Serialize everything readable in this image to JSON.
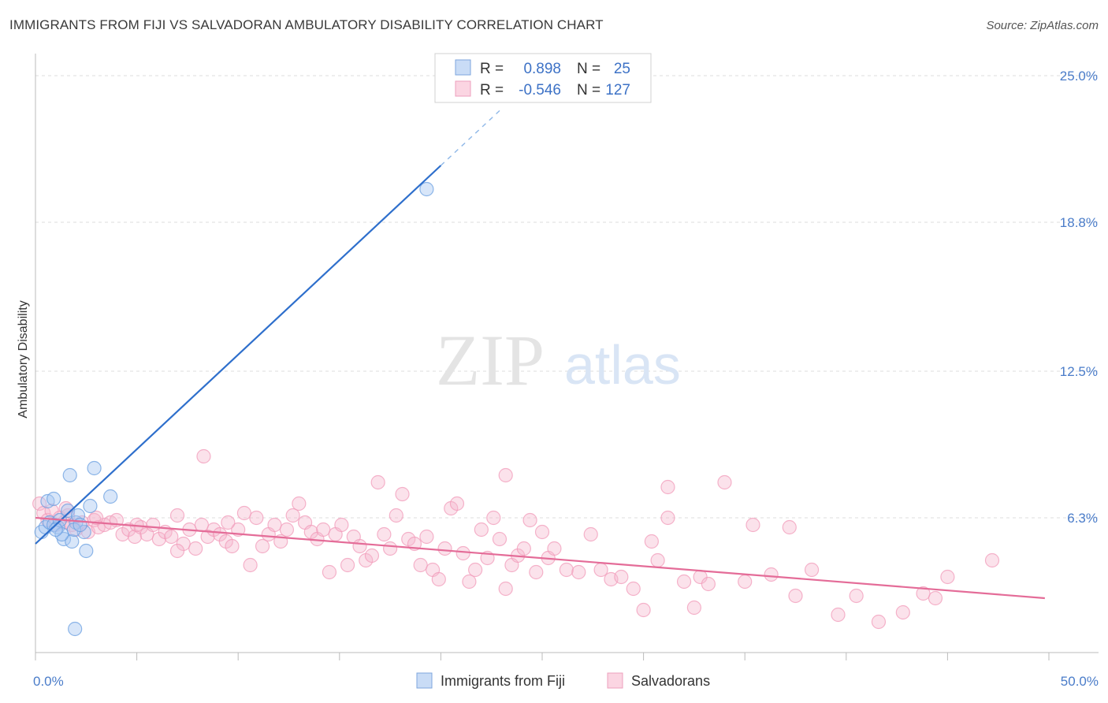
{
  "header": {
    "title": "IMMIGRANTS FROM FIJI VS SALVADORAN AMBULATORY DISABILITY CORRELATION CHART",
    "source": "Source: ZipAtlas.com"
  },
  "watermark": {
    "zip": "ZIP",
    "atlas": "atlas"
  },
  "legend_box": {
    "rows": [
      {
        "r_label": "R =",
        "r_value": "0.898",
        "n_label": "N =",
        "n_value": "25",
        "color": "#a9c8f1"
      },
      {
        "r_label": "R =",
        "r_value": "-0.546",
        "n_label": "N =",
        "n_value": "127",
        "color": "#f6b6cc"
      }
    ]
  },
  "bottom_legend": [
    {
      "label": "Immigrants from Fiji",
      "color": "#a9c8f1"
    },
    {
      "label": "Salvadorans",
      "color": "#f6b6cc"
    }
  ],
  "chart_data": {
    "type": "scatter",
    "title": "IMMIGRANTS FROM FIJI VS SALVADORAN AMBULATORY DISABILITY CORRELATION CHART",
    "xlabel": "",
    "ylabel": "Ambulatory Disability",
    "xlim": [
      0,
      50
    ],
    "ylim": [
      0,
      25
    ],
    "x_tick_labels": [
      "0.0%",
      "50.0%"
    ],
    "y_tick_values": [
      6.3,
      12.5,
      18.8,
      25.0
    ],
    "y_tick_labels": [
      "6.3%",
      "12.5%",
      "18.8%",
      "25.0%"
    ],
    "grid": true,
    "legend_position": "top-center",
    "series": [
      {
        "name": "Immigrants from Fiji",
        "color": "#6a9fe0",
        "line_color": "#2e6fcc",
        "trend": {
          "x0": 0,
          "y0": 5.2,
          "x1": 20,
          "y1": 21.2,
          "dashed_to_x": 23
        },
        "points": [
          [
            0.3,
            5.7
          ],
          [
            0.5,
            5.9
          ],
          [
            0.7,
            6.1
          ],
          [
            0.9,
            6.0
          ],
          [
            1.1,
            5.9
          ],
          [
            0.6,
            7.0
          ],
          [
            0.9,
            7.1
          ],
          [
            1.2,
            6.2
          ],
          [
            1.4,
            5.4
          ],
          [
            1.6,
            6.6
          ],
          [
            1.8,
            5.3
          ],
          [
            2.0,
            6.1
          ],
          [
            2.1,
            6.4
          ],
          [
            2.4,
            5.7
          ],
          [
            2.7,
            6.8
          ],
          [
            1.3,
            5.6
          ],
          [
            2.9,
            8.4
          ],
          [
            1.7,
            8.1
          ],
          [
            3.7,
            7.2
          ],
          [
            2.5,
            4.9
          ],
          [
            19.3,
            20.2
          ],
          [
            1.9,
            5.8
          ],
          [
            2.2,
            6.0
          ],
          [
            1.0,
            5.8
          ],
          [
            1.95,
            1.6
          ]
        ]
      },
      {
        "name": "Salvadorans",
        "color": "#f19bb9",
        "line_color": "#e46c98",
        "trend": {
          "x0": 0,
          "y0": 6.3,
          "x1": 49.8,
          "y1": 2.9
        },
        "points": [
          [
            0.2,
            6.9
          ],
          [
            0.4,
            6.5
          ],
          [
            0.6,
            6.2
          ],
          [
            0.8,
            6.6
          ],
          [
            1.0,
            6.0
          ],
          [
            1.2,
            6.3
          ],
          [
            1.4,
            6.1
          ],
          [
            1.6,
            6.4
          ],
          [
            1.8,
            6.0
          ],
          [
            2.0,
            5.8
          ],
          [
            2.3,
            6.1
          ],
          [
            2.6,
            5.7
          ],
          [
            2.9,
            6.2
          ],
          [
            3.1,
            5.9
          ],
          [
            3.4,
            6.0
          ],
          [
            3.7,
            6.1
          ],
          [
            4.0,
            6.2
          ],
          [
            4.3,
            5.6
          ],
          [
            4.6,
            5.8
          ],
          [
            4.9,
            5.5
          ],
          [
            5.2,
            5.9
          ],
          [
            5.5,
            5.6
          ],
          [
            5.8,
            6.0
          ],
          [
            6.1,
            5.4
          ],
          [
            6.4,
            5.7
          ],
          [
            6.7,
            5.5
          ],
          [
            7.0,
            6.4
          ],
          [
            7.3,
            5.2
          ],
          [
            7.6,
            5.8
          ],
          [
            7.9,
            5.0
          ],
          [
            8.2,
            6.0
          ],
          [
            8.5,
            5.5
          ],
          [
            8.8,
            5.8
          ],
          [
            9.1,
            5.6
          ],
          [
            9.4,
            5.3
          ],
          [
            9.7,
            5.1
          ],
          [
            10.0,
            5.8
          ],
          [
            10.3,
            6.5
          ],
          [
            10.6,
            4.3
          ],
          [
            10.9,
            6.3
          ],
          [
            11.2,
            5.1
          ],
          [
            11.5,
            5.6
          ],
          [
            11.8,
            6.0
          ],
          [
            12.1,
            5.3
          ],
          [
            12.4,
            5.8
          ],
          [
            12.7,
            6.4
          ],
          [
            13.0,
            6.9
          ],
          [
            13.3,
            6.1
          ],
          [
            13.6,
            5.7
          ],
          [
            13.9,
            5.4
          ],
          [
            14.2,
            5.8
          ],
          [
            14.5,
            4.0
          ],
          [
            14.8,
            5.6
          ],
          [
            15.1,
            6.0
          ],
          [
            15.4,
            4.3
          ],
          [
            15.7,
            5.5
          ],
          [
            16.0,
            5.1
          ],
          [
            16.3,
            4.5
          ],
          [
            16.6,
            4.7
          ],
          [
            16.9,
            7.8
          ],
          [
            17.2,
            5.6
          ],
          [
            17.5,
            5.0
          ],
          [
            17.8,
            6.4
          ],
          [
            18.1,
            7.3
          ],
          [
            18.4,
            5.4
          ],
          [
            18.7,
            5.2
          ],
          [
            19.0,
            4.3
          ],
          [
            19.3,
            5.5
          ],
          [
            19.6,
            4.1
          ],
          [
            19.9,
            3.7
          ],
          [
            20.2,
            5.0
          ],
          [
            20.5,
            6.7
          ],
          [
            20.8,
            6.9
          ],
          [
            21.1,
            4.8
          ],
          [
            21.4,
            3.6
          ],
          [
            21.7,
            4.1
          ],
          [
            22.0,
            5.8
          ],
          [
            22.3,
            4.6
          ],
          [
            22.6,
            6.3
          ],
          [
            22.9,
            5.4
          ],
          [
            23.2,
            3.3
          ],
          [
            23.5,
            4.3
          ],
          [
            23.8,
            4.7
          ],
          [
            24.1,
            5.0
          ],
          [
            24.4,
            6.2
          ],
          [
            24.7,
            4.0
          ],
          [
            25.0,
            5.7
          ],
          [
            25.3,
            4.6
          ],
          [
            25.6,
            5.0
          ],
          [
            26.2,
            4.1
          ],
          [
            26.8,
            4.0
          ],
          [
            27.4,
            5.6
          ],
          [
            27.9,
            4.1
          ],
          [
            28.4,
            3.7
          ],
          [
            28.9,
            3.8
          ],
          [
            23.2,
            8.1
          ],
          [
            29.5,
            3.3
          ],
          [
            30.0,
            2.4
          ],
          [
            30.4,
            5.3
          ],
          [
            30.7,
            4.5
          ],
          [
            31.2,
            6.3
          ],
          [
            31.2,
            7.6
          ],
          [
            32.0,
            3.6
          ],
          [
            32.5,
            2.5
          ],
          [
            32.8,
            3.8
          ],
          [
            33.2,
            3.5
          ],
          [
            34.0,
            7.8
          ],
          [
            35.0,
            3.6
          ],
          [
            35.4,
            6.0
          ],
          [
            36.3,
            3.9
          ],
          [
            37.2,
            5.9
          ],
          [
            37.5,
            3.0
          ],
          [
            38.3,
            4.1
          ],
          [
            39.6,
            2.2
          ],
          [
            40.5,
            3.0
          ],
          [
            41.6,
            1.9
          ],
          [
            42.8,
            2.3
          ],
          [
            43.8,
            3.1
          ],
          [
            44.4,
            2.9
          ],
          [
            45.0,
            3.8
          ],
          [
            47.2,
            4.5
          ],
          [
            8.3,
            8.9
          ],
          [
            7.0,
            4.9
          ],
          [
            5.0,
            6.0
          ],
          [
            9.5,
            6.1
          ],
          [
            3.0,
            6.3
          ],
          [
            1.5,
            6.7
          ]
        ]
      }
    ]
  }
}
